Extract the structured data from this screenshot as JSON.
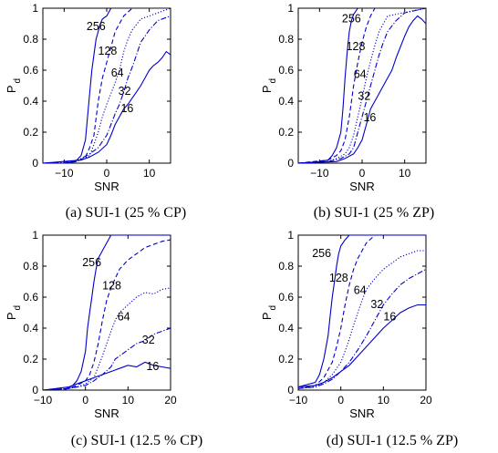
{
  "colors": {
    "line": "#0000cc",
    "axis": "#000000",
    "background": "#ffffff"
  },
  "chart_data": [
    {
      "type": "line",
      "caption": "(a)  SUI-1 (25 % CP)",
      "xlabel": "SNR",
      "ylabel": "P",
      "ylabel_sub": "d",
      "xlim": [
        -15,
        15
      ],
      "ylim": [
        0,
        1
      ],
      "xticks": [
        -10,
        0,
        10
      ],
      "yticks": [
        0,
        0.2,
        0.4,
        0.6,
        0.8,
        1
      ],
      "grid": false,
      "series": [
        {
          "name": "256",
          "style": "solid",
          "x": [
            -15,
            -12,
            -9,
            -7,
            -6,
            -5,
            -4,
            -3.5,
            -3,
            -2.5,
            -2,
            -1.5,
            -1,
            0,
            1,
            2,
            4,
            15
          ],
          "y": [
            0,
            0,
            0,
            0.02,
            0.05,
            0.15,
            0.45,
            0.6,
            0.7,
            0.8,
            0.85,
            0.9,
            0.93,
            0.95,
            1.0,
            1.0,
            1.0,
            1.0
          ]
        },
        {
          "name": "128",
          "style": "dashed",
          "x": [
            -15,
            -10,
            -7,
            -5,
            -4,
            -3,
            -2,
            -1,
            0,
            1,
            2,
            3,
            4,
            6,
            15
          ],
          "y": [
            0,
            0,
            0.01,
            0.04,
            0.1,
            0.18,
            0.4,
            0.55,
            0.65,
            0.75,
            0.85,
            0.9,
            0.95,
            1.0,
            1.0
          ]
        },
        {
          "name": "64",
          "style": "dotted",
          "x": [
            -15,
            -10,
            -6,
            -4,
            -3,
            -2,
            -1,
            0,
            1,
            2,
            3,
            4,
            5,
            6,
            8,
            15
          ],
          "y": [
            0,
            0,
            0.02,
            0.05,
            0.12,
            0.2,
            0.3,
            0.38,
            0.45,
            0.52,
            0.6,
            0.72,
            0.8,
            0.86,
            0.93,
            1.0
          ]
        },
        {
          "name": "32",
          "style": "dashdot",
          "x": [
            -15,
            -8,
            -6,
            -4,
            -2,
            0,
            1,
            2,
            3,
            4,
            5,
            6,
            7,
            8,
            10,
            12,
            15
          ],
          "y": [
            0,
            0.01,
            0.03,
            0.06,
            0.1,
            0.18,
            0.25,
            0.32,
            0.38,
            0.46,
            0.55,
            0.62,
            0.7,
            0.78,
            0.86,
            0.92,
            0.95
          ]
        },
        {
          "name": "16",
          "style": "solid",
          "x": [
            -15,
            -6,
            -4,
            -2,
            0,
            1,
            2,
            3,
            4,
            5,
            6,
            7,
            8,
            9,
            10,
            11,
            12,
            13,
            14,
            15
          ],
          "y": [
            0,
            0.02,
            0.04,
            0.07,
            0.12,
            0.18,
            0.25,
            0.3,
            0.35,
            0.38,
            0.42,
            0.46,
            0.5,
            0.55,
            0.6,
            0.63,
            0.65,
            0.68,
            0.72,
            0.7
          ]
        }
      ],
      "annotations": [
        {
          "text": "256",
          "x": -2.5,
          "y": 0.86
        },
        {
          "text": "128",
          "x": 0.2,
          "y": 0.7
        },
        {
          "text": "64",
          "x": 2.5,
          "y": 0.56
        },
        {
          "text": "32",
          "x": 4.2,
          "y": 0.44
        },
        {
          "text": "16",
          "x": 4.8,
          "y": 0.33
        }
      ]
    },
    {
      "type": "line",
      "caption": "(b)  SUI-1 (25 % ZP)",
      "xlabel": "SNR",
      "ylabel": "P",
      "ylabel_sub": "d",
      "xlim": [
        -15,
        15
      ],
      "ylim": [
        0,
        1
      ],
      "xticks": [
        -10,
        0,
        10
      ],
      "yticks": [
        0,
        0.2,
        0.4,
        0.6,
        0.8,
        1
      ],
      "grid": false,
      "series": [
        {
          "name": "256",
          "style": "solid",
          "x": [
            -15,
            -10,
            -8,
            -7,
            -6,
            -5,
            -4.5,
            -4,
            -3.5,
            -3,
            -2.5,
            -2,
            -1,
            0,
            15
          ],
          "y": [
            0,
            0.01,
            0.02,
            0.05,
            0.1,
            0.2,
            0.35,
            0.55,
            0.72,
            0.85,
            0.92,
            0.96,
            1.0,
            1.0,
            1.0
          ]
        },
        {
          "name": "128",
          "style": "dashed",
          "x": [
            -15,
            -8,
            -6,
            -5,
            -4,
            -3,
            -2,
            -1,
            0,
            1,
            2,
            3,
            15
          ],
          "y": [
            0,
            0.02,
            0.05,
            0.08,
            0.15,
            0.3,
            0.5,
            0.65,
            0.78,
            0.88,
            0.95,
            1.0,
            1.0
          ]
        },
        {
          "name": "64",
          "style": "dotted",
          "x": [
            -15,
            -8,
            -6,
            -4,
            -3,
            -2,
            -1,
            0,
            1,
            2,
            3,
            4,
            5,
            6,
            15
          ],
          "y": [
            0,
            0.01,
            0.03,
            0.06,
            0.1,
            0.18,
            0.3,
            0.42,
            0.55,
            0.66,
            0.76,
            0.85,
            0.9,
            0.95,
            1.0
          ]
        },
        {
          "name": "32",
          "style": "dashdot",
          "x": [
            -15,
            -8,
            -5,
            -3,
            -2,
            -1,
            0,
            1,
            2,
            3,
            4,
            5,
            6,
            8,
            10,
            15
          ],
          "y": [
            0,
            0.01,
            0.03,
            0.06,
            0.1,
            0.2,
            0.3,
            0.4,
            0.5,
            0.6,
            0.7,
            0.78,
            0.85,
            0.92,
            0.97,
            1.0
          ]
        },
        {
          "name": "16",
          "style": "solid",
          "x": [
            -15,
            -6,
            -4,
            -2,
            -1,
            0,
            1,
            2,
            3,
            4,
            5,
            6,
            7,
            8,
            9,
            10,
            11,
            12,
            13,
            14,
            15
          ],
          "y": [
            0,
            0.01,
            0.03,
            0.06,
            0.1,
            0.15,
            0.25,
            0.35,
            0.4,
            0.45,
            0.5,
            0.55,
            0.6,
            0.68,
            0.75,
            0.82,
            0.88,
            0.92,
            0.95,
            0.93,
            0.9
          ]
        }
      ],
      "annotations": [
        {
          "text": "256",
          "x": -2.5,
          "y": 0.91
        },
        {
          "text": "128",
          "x": -1.5,
          "y": 0.73
        },
        {
          "text": "64",
          "x": -0.5,
          "y": 0.55
        },
        {
          "text": "32",
          "x": 0.5,
          "y": 0.41
        },
        {
          "text": "16",
          "x": 1.8,
          "y": 0.27
        }
      ]
    },
    {
      "type": "line",
      "caption": "(c)  SUI-1 (12.5 % CP)",
      "xlabel": "SNR",
      "ylabel": "P",
      "ylabel_sub": "d",
      "xlim": [
        -10,
        20
      ],
      "ylim": [
        0,
        1
      ],
      "xticks": [
        -10,
        0,
        10,
        20
      ],
      "yticks": [
        0,
        0.2,
        0.4,
        0.6,
        0.8,
        1
      ],
      "grid": false,
      "series": [
        {
          "name": "256",
          "style": "solid",
          "x": [
            -10,
            -5,
            -3,
            -2,
            -1,
            0,
            0.5,
            1,
            1.5,
            2,
            2.5,
            3,
            4,
            5,
            6,
            8,
            20
          ],
          "y": [
            0,
            0,
            0.03,
            0.06,
            0.12,
            0.25,
            0.4,
            0.5,
            0.6,
            0.7,
            0.78,
            0.85,
            0.9,
            0.95,
            1.0,
            1.0,
            1.0
          ]
        },
        {
          "name": "128",
          "style": "dashed",
          "x": [
            -10,
            -4,
            -2,
            0,
            1,
            2,
            3,
            4,
            5,
            6,
            7,
            8,
            10,
            12,
            14,
            16,
            18,
            20
          ],
          "y": [
            0,
            0.01,
            0.03,
            0.06,
            0.1,
            0.18,
            0.3,
            0.45,
            0.58,
            0.66,
            0.72,
            0.78,
            0.84,
            0.88,
            0.92,
            0.94,
            0.96,
            0.97
          ]
        },
        {
          "name": "64",
          "style": "dotted",
          "x": [
            -10,
            -4,
            -2,
            0,
            2,
            3,
            4,
            5,
            6,
            7,
            8,
            10,
            12,
            14,
            16,
            18,
            20
          ],
          "y": [
            0,
            0.01,
            0.02,
            0.04,
            0.08,
            0.15,
            0.22,
            0.3,
            0.38,
            0.45,
            0.5,
            0.55,
            0.6,
            0.63,
            0.62,
            0.65,
            0.66
          ]
        },
        {
          "name": "32",
          "style": "dashdot",
          "x": [
            -10,
            -4,
            -2,
            0,
            2,
            4,
            6,
            7,
            8,
            10,
            12,
            14,
            16,
            18,
            20
          ],
          "y": [
            0,
            0.01,
            0.02,
            0.03,
            0.06,
            0.1,
            0.15,
            0.2,
            0.22,
            0.26,
            0.3,
            0.32,
            0.36,
            0.38,
            0.4
          ]
        },
        {
          "name": "16",
          "style": "solid",
          "x": [
            -10,
            -4,
            -2,
            0,
            2,
            4,
            6,
            8,
            10,
            12,
            14,
            16,
            18,
            20
          ],
          "y": [
            0,
            0.02,
            0.04,
            0.06,
            0.08,
            0.1,
            0.12,
            0.14,
            0.16,
            0.15,
            0.18,
            0.16,
            0.15,
            0.14
          ]
        }
      ],
      "annotations": [
        {
          "text": "256",
          "x": 1.5,
          "y": 0.8
        },
        {
          "text": "128",
          "x": 6.2,
          "y": 0.65
        },
        {
          "text": "64",
          "x": 9,
          "y": 0.45
        },
        {
          "text": "32",
          "x": 14.8,
          "y": 0.3
        },
        {
          "text": "16",
          "x": 15.8,
          "y": 0.13
        }
      ]
    },
    {
      "type": "line",
      "caption": "(d)  SUI-1 (12.5 % ZP)",
      "xlabel": "SNR",
      "ylabel": "P",
      "ylabel_sub": "d",
      "xlim": [
        -10,
        20
      ],
      "ylim": [
        0,
        1
      ],
      "xticks": [
        -10,
        0,
        10,
        20
      ],
      "yticks": [
        0,
        0.2,
        0.4,
        0.6,
        0.8,
        1
      ],
      "grid": false,
      "series": [
        {
          "name": "256",
          "style": "solid",
          "x": [
            -10,
            -6,
            -5,
            -4,
            -3,
            -2.5,
            -2,
            -1.5,
            -1,
            -0.5,
            0,
            1,
            2,
            3,
            20
          ],
          "y": [
            0.02,
            0.05,
            0.1,
            0.2,
            0.35,
            0.48,
            0.6,
            0.7,
            0.8,
            0.88,
            0.93,
            0.97,
            1.0,
            1.0,
            1.0
          ]
        },
        {
          "name": "128",
          "style": "dashed",
          "x": [
            -10,
            -6,
            -4,
            -2,
            -1,
            0,
            1,
            2,
            3,
            4,
            5,
            6,
            8,
            20
          ],
          "y": [
            0.01,
            0.03,
            0.08,
            0.18,
            0.28,
            0.4,
            0.55,
            0.68,
            0.78,
            0.85,
            0.9,
            0.95,
            1.0,
            1.0
          ]
        },
        {
          "name": "64",
          "style": "dotted",
          "x": [
            -10,
            -6,
            -4,
            -2,
            0,
            1,
            2,
            3,
            4,
            5,
            6,
            8,
            10,
            12,
            14,
            16,
            18,
            20
          ],
          "y": [
            0.01,
            0.02,
            0.05,
            0.1,
            0.18,
            0.25,
            0.33,
            0.42,
            0.5,
            0.58,
            0.65,
            0.72,
            0.78,
            0.82,
            0.86,
            0.88,
            0.9,
            0.9
          ]
        },
        {
          "name": "32",
          "style": "dashdot",
          "x": [
            -10,
            -6,
            -4,
            -2,
            0,
            2,
            4,
            6,
            8,
            10,
            12,
            14,
            16,
            18,
            20
          ],
          "y": [
            0.01,
            0.02,
            0.04,
            0.07,
            0.12,
            0.18,
            0.26,
            0.35,
            0.45,
            0.55,
            0.62,
            0.68,
            0.72,
            0.75,
            0.78
          ]
        },
        {
          "name": "16",
          "style": "solid",
          "x": [
            -10,
            -6,
            -4,
            -2,
            0,
            2,
            4,
            6,
            8,
            10,
            12,
            14,
            16,
            18,
            20
          ],
          "y": [
            0.02,
            0.03,
            0.05,
            0.08,
            0.12,
            0.16,
            0.22,
            0.28,
            0.34,
            0.4,
            0.45,
            0.5,
            0.53,
            0.55,
            0.55
          ]
        }
      ],
      "annotations": [
        {
          "text": "256",
          "x": -4.5,
          "y": 0.86
        },
        {
          "text": "128",
          "x": -0.5,
          "y": 0.7
        },
        {
          "text": "64",
          "x": 4.5,
          "y": 0.62
        },
        {
          "text": "32",
          "x": 8.5,
          "y": 0.53
        },
        {
          "text": "16",
          "x": 11.5,
          "y": 0.45
        }
      ]
    }
  ]
}
